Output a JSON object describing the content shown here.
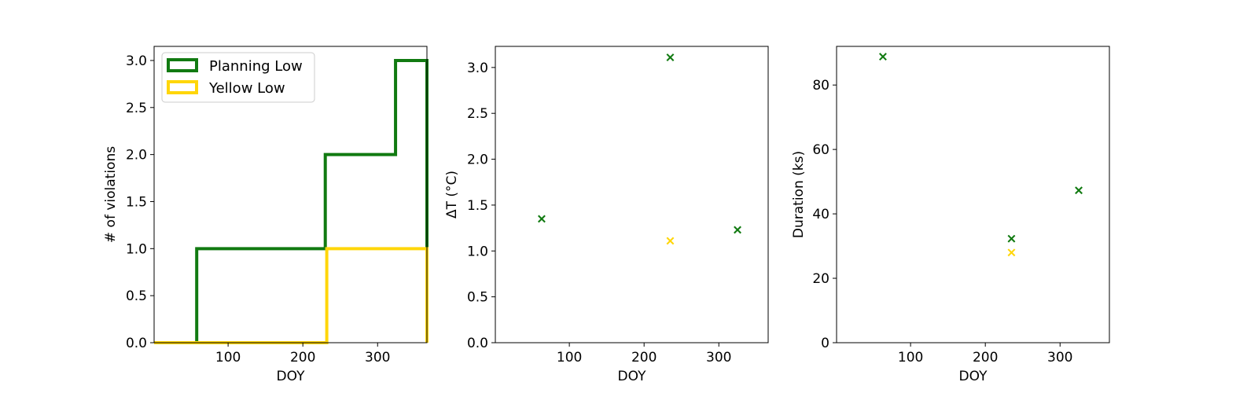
{
  "chart_data": [
    {
      "type": "step",
      "xlabel": "DOY",
      "ylabel": "# of violations",
      "xlim": [
        1,
        366
      ],
      "ylim": [
        0,
        3.15
      ],
      "xticks": [
        100,
        200,
        300
      ],
      "xtick_labels": [
        "100",
        "200",
        "300"
      ],
      "yticks": [
        0,
        0.5,
        1,
        1.5,
        2,
        2.5,
        3
      ],
      "ytick_labels": [
        "0.0",
        "0.5",
        "1.0",
        "1.5",
        "2.0",
        "2.5",
        "3.0"
      ],
      "legend_position": "upper-left",
      "series": [
        {
          "name": "Planning Low",
          "color": "#117a11",
          "points": [
            [
              1,
              0
            ],
            [
              58,
              0
            ],
            [
              58,
              1
            ],
            [
              230,
              1
            ],
            [
              230,
              2
            ],
            [
              324,
              2
            ],
            [
              324,
              3
            ],
            [
              366,
              3
            ],
            [
              366,
              0
            ]
          ]
        },
        {
          "name": "Yellow Low",
          "color": "#ffd60a",
          "points": [
            [
              1,
              0
            ],
            [
              232,
              0
            ],
            [
              232,
              1
            ],
            [
              366,
              1
            ],
            [
              366,
              0
            ]
          ]
        }
      ]
    },
    {
      "type": "scatter",
      "xlabel": "DOY",
      "ylabel": "ΔT ($^\\circ$C)",
      "ylabel_display": "ΔT (°C)",
      "xlim": [
        1,
        366
      ],
      "ylim": [
        0,
        3.23
      ],
      "xticks": [
        100,
        200,
        300
      ],
      "xtick_labels": [
        "100",
        "200",
        "300"
      ],
      "yticks": [
        0,
        0.5,
        1,
        1.5,
        2,
        2.5,
        3
      ],
      "ytick_labels": [
        "0.0",
        "0.5",
        "1.0",
        "1.5",
        "2.0",
        "2.5",
        "3.0"
      ],
      "series": [
        {
          "color": "#117a11",
          "points": [
            [
              63,
              1.35
            ],
            [
              235,
              3.11
            ],
            [
              325,
              1.23
            ]
          ]
        },
        {
          "color": "#ffd60a",
          "points": [
            [
              235,
              1.11
            ]
          ]
        }
      ]
    },
    {
      "type": "scatter",
      "xlabel": "DOY",
      "ylabel": "Duration (ks)",
      "xlim": [
        1,
        366
      ],
      "ylim": [
        0,
        92
      ],
      "xticks": [
        100,
        200,
        300
      ],
      "xtick_labels": [
        "100",
        "200",
        "300"
      ],
      "yticks": [
        0,
        20,
        40,
        60,
        80
      ],
      "ytick_labels": [
        "0",
        "20",
        "40",
        "60",
        "80"
      ],
      "series": [
        {
          "color": "#117a11",
          "points": [
            [
              63,
              88.8
            ],
            [
              235,
              32.3
            ],
            [
              325,
              47.3
            ]
          ]
        },
        {
          "color": "#ffd60a",
          "points": [
            [
              235,
              28.0
            ]
          ]
        }
      ]
    }
  ]
}
